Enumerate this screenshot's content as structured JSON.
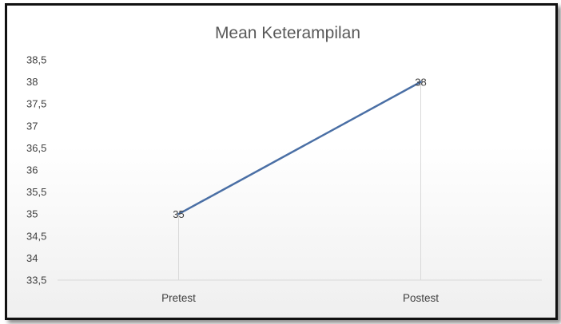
{
  "chart_data": {
    "type": "line",
    "title": "Mean Keterampilan",
    "categories": [
      "Pretest",
      "Postest"
    ],
    "series": [
      {
        "values": [
          35,
          38
        ],
        "color": "#4a6fa5"
      }
    ],
    "data_labels": [
      "35",
      "38"
    ],
    "ylim": [
      33.5,
      38.5
    ],
    "yticks": [
      33.5,
      34,
      34.5,
      35,
      35.5,
      36,
      36.5,
      37,
      37.5,
      38,
      38.5
    ],
    "ytick_labels": [
      "33,5",
      "34",
      "34,5",
      "35",
      "35,5",
      "36",
      "36,5",
      "37",
      "37,5",
      "38",
      "38,5"
    ],
    "xlabel": "",
    "ylabel": "",
    "grid": false,
    "drop_lines": true,
    "legend": "none"
  }
}
